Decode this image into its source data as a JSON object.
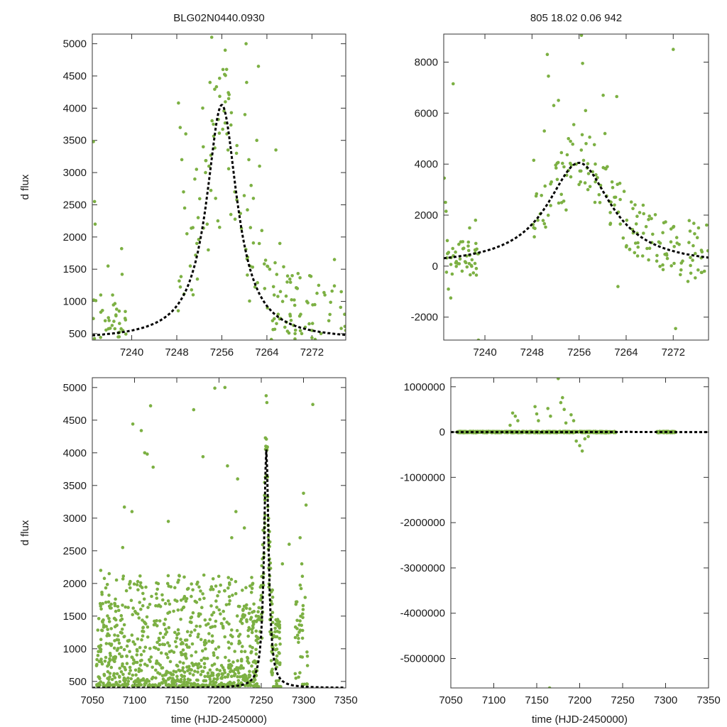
{
  "chart_data": [
    {
      "type": "scatter",
      "title": "BLG02N0440.0930",
      "xlabel": "",
      "ylabel": "d flux",
      "xlim": [
        7233,
        7278
      ],
      "ylim": [
        400,
        5150
      ],
      "xticks": [
        7240,
        7248,
        7256,
        7264,
        7272
      ],
      "yticks": [
        500,
        1000,
        1500,
        2000,
        2500,
        3000,
        3500,
        4000,
        4500,
        5000
      ],
      "series": [
        {
          "name": "data",
          "style": "points",
          "points": [
            [
              7233.2,
              3480
            ],
            [
              7233.4,
              2550
            ],
            [
              7233.5,
              2200
            ],
            [
              7234.5,
              1100
            ],
            [
              7234.8,
              860
            ],
            [
              7235.3,
              700
            ],
            [
              7235.8,
              1550
            ],
            [
              7236.6,
              1100
            ],
            [
              7237.2,
              790
            ],
            [
              7237.6,
              450
            ],
            [
              7238.2,
              1820
            ],
            [
              7238.3,
              1420
            ],
            [
              7248.3,
              4080
            ],
            [
              7248.6,
              3700
            ],
            [
              7248.9,
              3200
            ],
            [
              7249.2,
              2700
            ],
            [
              7249.4,
              2450
            ],
            [
              7249.6,
              3600
            ],
            [
              7249.8,
              2050
            ],
            [
              7250.4,
              1550
            ],
            [
              7251.2,
              2900
            ],
            [
              7251.5,
              3050
            ],
            [
              7251.8,
              2300
            ],
            [
              7252.6,
              4000
            ],
            [
              7252.7,
              3400
            ],
            [
              7253.1,
              3000
            ],
            [
              7253.4,
              2200
            ],
            [
              7253.6,
              1800
            ],
            [
              7253.9,
              4400
            ],
            [
              7254.2,
              5100
            ],
            [
              7254.5,
              3750
            ],
            [
              7254.9,
              2600
            ],
            [
              7255.3,
              2250
            ],
            [
              7255.6,
              2150
            ],
            [
              7256.2,
              4600
            ],
            [
              7256.6,
              4900
            ],
            [
              7256.9,
              3600
            ],
            [
              7257.1,
              3350
            ],
            [
              7257.6,
              2350
            ],
            [
              7258.3,
              2700
            ],
            [
              7258.6,
              3300
            ],
            [
              7260.1,
              3900
            ],
            [
              7260.3,
              5000
            ],
            [
              7260.4,
              4400
            ],
            [
              7260.8,
              3200
            ],
            [
              7261.2,
              2800
            ],
            [
              7261.6,
              2600
            ],
            [
              7262.2,
              3500
            ],
            [
              7262.5,
              4650
            ],
            [
              7262.7,
              3100
            ],
            [
              7263.1,
              2100
            ],
            [
              7263.6,
              1200
            ],
            [
              7264.1,
              900
            ],
            [
              7264.5,
              1500
            ],
            [
              7265.0,
              700
            ],
            [
              7265.3,
              1100
            ],
            [
              7265.6,
              3350
            ],
            [
              7266.0,
              800
            ],
            [
              7266.3,
              1900
            ],
            [
              7266.8,
              1000
            ],
            [
              7267.2,
              600
            ],
            [
              7267.6,
              1300
            ],
            [
              7268.1,
              800
            ],
            [
              7268.5,
              1400
            ],
            [
              7269.0,
              500
            ],
            [
              7269.4,
              1200
            ],
            [
              7270.0,
              800
            ],
            [
              7270.8,
              600
            ],
            [
              7271.6,
              1400
            ],
            [
              7272.0,
              550
            ],
            [
              7272.5,
              950
            ],
            [
              7273.2,
              1250
            ],
            [
              7273.6,
              500
            ],
            [
              7274.3,
              1100
            ],
            [
              7275.0,
              700
            ],
            [
              7276.0,
              1650
            ],
            [
              7277.2,
              1150
            ],
            [
              7277.8,
              800
            ],
            [
              7278.0,
              550
            ]
          ]
        },
        {
          "name": "model",
          "style": "dashed",
          "peak_time": 7256,
          "peak_flux": 4050,
          "baseline": 400,
          "width": 3.3
        }
      ]
    },
    {
      "type": "scatter",
      "title": "805  18.02  0.06  942",
      "xlabel": "",
      "ylabel": "",
      "xlim": [
        7233,
        7278
      ],
      "ylim": [
        -2900,
        9100
      ],
      "xticks": [
        7240,
        7248,
        7256,
        7264,
        7272
      ],
      "yticks": [
        -2000,
        0,
        2000,
        4000,
        6000,
        8000
      ],
      "series": [
        {
          "name": "data",
          "style": "points",
          "points": [
            [
              7233.1,
              3450
            ],
            [
              7233.3,
              2500
            ],
            [
              7233.4,
              2150
            ],
            [
              7233.6,
              1000
            ],
            [
              7233.8,
              -900
            ],
            [
              7234.2,
              -1250
            ],
            [
              7234.6,
              7150
            ],
            [
              7235.0,
              550
            ],
            [
              7235.4,
              100
            ],
            [
              7235.9,
              950
            ],
            [
              7236.4,
              700
            ],
            [
              7236.9,
              400
            ],
            [
              7237.4,
              1500
            ],
            [
              7237.8,
              250
            ],
            [
              7238.4,
              1800
            ],
            [
              7238.9,
              -2900
            ],
            [
              7248.3,
              4150
            ],
            [
              7248.7,
              2750
            ],
            [
              7249.0,
              1800
            ],
            [
              7249.4,
              2050
            ],
            [
              7250.1,
              5300
            ],
            [
              7250.6,
              8300
            ],
            [
              7250.8,
              7450
            ],
            [
              7251.3,
              3300
            ],
            [
              7251.7,
              6300
            ],
            [
              7252.1,
              3850
            ],
            [
              7252.5,
              6500
            ],
            [
              7253.0,
              4450
            ],
            [
              7253.4,
              2550
            ],
            [
              7253.8,
              2200
            ],
            [
              7254.2,
              5000
            ],
            [
              7254.6,
              3500
            ],
            [
              7255.1,
              5550
            ],
            [
              7255.5,
              4000
            ],
            [
              7256.0,
              3200
            ],
            [
              7256.4,
              9050
            ],
            [
              7256.6,
              7950
            ],
            [
              7257.1,
              6100
            ],
            [
              7257.5,
              3000
            ],
            [
              7258.3,
              3700
            ],
            [
              7258.7,
              2500
            ],
            [
              7260.1,
              6700
            ],
            [
              7260.4,
              5200
            ],
            [
              7260.8,
              3900
            ],
            [
              7261.3,
              2100
            ],
            [
              7261.6,
              3300
            ],
            [
              7262.0,
              2700
            ],
            [
              7262.4,
              6650
            ],
            [
              7262.6,
              -800
            ],
            [
              7263.0,
              1650
            ],
            [
              7263.5,
              1100
            ],
            [
              7264.1,
              1800
            ],
            [
              7264.6,
              650
            ],
            [
              7265.2,
              1300
            ],
            [
              7265.6,
              900
            ],
            [
              7266.3,
              2100
            ],
            [
              7266.8,
              400
            ],
            [
              7267.4,
              1550
            ],
            [
              7268.0,
              700
            ],
            [
              7268.5,
              1250
            ],
            [
              7269.2,
              200
            ],
            [
              7269.8,
              900
            ],
            [
              7270.4,
              1700
            ],
            [
              7271.0,
              300
            ],
            [
              7271.6,
              950
            ],
            [
              7272.0,
              8500
            ],
            [
              7272.4,
              -2450
            ],
            [
              7273.0,
              850
            ],
            [
              7273.6,
              200
            ],
            [
              7274.5,
              -600
            ],
            [
              7275.4,
              800
            ],
            [
              7276.3,
              1500
            ],
            [
              7277.3,
              -200
            ],
            [
              7277.9,
              600
            ]
          ]
        },
        {
          "name": "model",
          "style": "dashed",
          "peak_time": 7256,
          "peak_flux": 4050,
          "baseline": 0,
          "width": 6.6
        }
      ]
    },
    {
      "type": "scatter",
      "title": "",
      "xlabel": "time (HJD-2450000)",
      "ylabel": "d flux",
      "xlim": [
        7050,
        7350
      ],
      "ylim": [
        400,
        5150
      ],
      "xticks": [
        7050,
        7100,
        7150,
        7200,
        7250,
        7300,
        7350
      ],
      "yticks": [
        500,
        1000,
        1500,
        2000,
        2500,
        3000,
        3500,
        4000,
        4500,
        5000
      ],
      "series": [
        {
          "name": "data",
          "style": "points",
          "generated": "dense_background",
          "range": [
            7055,
            7245
          ],
          "points": [
            [
              7060,
              2200
            ],
            [
              7070,
              2150
            ],
            [
              7086,
              2550
            ],
            [
              7088,
              3170
            ],
            [
              7097,
              3100
            ],
            [
              7098,
              4440
            ],
            [
              7108,
              4340
            ],
            [
              7112,
              4000
            ],
            [
              7119,
              4720
            ],
            [
              7122,
              3780
            ],
            [
              7115,
              3980
            ],
            [
              7140,
              2950
            ],
            [
              7170,
              4660
            ],
            [
              7181,
              3940
            ],
            [
              7195,
              4990
            ],
            [
              7207,
              5000
            ],
            [
              7210,
              3800
            ],
            [
              7215,
              2700
            ],
            [
              7220,
              3100
            ],
            [
              7222,
              3600
            ],
            [
              7230,
              2850
            ],
            [
              7240,
              2000
            ],
            [
              7275,
              2300
            ],
            [
              7283,
              2600
            ],
            [
              7300,
              3380
            ],
            [
              7303,
              3200
            ],
            [
              7311,
              4740
            ],
            [
              7296,
              2700
            ],
            [
              7298,
              2300
            ]
          ]
        },
        {
          "name": "model",
          "style": "dashed",
          "peak_time": 7256,
          "peak_flux": 4050,
          "baseline": 400,
          "width": 3.3
        }
      ]
    },
    {
      "type": "scatter",
      "title": "",
      "xlabel": "time (HJD-2450000)",
      "ylabel": "",
      "xlim": [
        7050,
        7350
      ],
      "ylim": [
        -5650000,
        1200000
      ],
      "xticks": [
        7050,
        7100,
        7150,
        7200,
        7250,
        7300,
        7350
      ],
      "yticks": [
        -5000000,
        -4000000,
        -3000000,
        -2000000,
        -1000000,
        0,
        1000000
      ],
      "series": [
        {
          "name": "data",
          "style": "points",
          "points": [
            [
              7122,
              420000
            ],
            [
              7125,
              350000
            ],
            [
              7128,
              250000
            ],
            [
              7119,
              150000
            ],
            [
              7148,
              560000
            ],
            [
              7150,
              400000
            ],
            [
              7152,
              250000
            ],
            [
              7163,
              520000
            ],
            [
              7166,
              350000
            ],
            [
              7175,
              1180000
            ],
            [
              7178,
              650000
            ],
            [
              7180,
              760000
            ],
            [
              7182,
              500000
            ],
            [
              7184,
              200000
            ],
            [
              7190,
              380000
            ],
            [
              7193,
              250000
            ],
            [
              7196,
              -200000
            ],
            [
              7200,
              -300000
            ],
            [
              7203,
              -420000
            ],
            [
              7206,
              -150000
            ],
            [
              7210,
              -100000
            ],
            [
              7165,
              -5650000
            ]
          ]
        },
        {
          "name": "model",
          "style": "dashed",
          "peak_time": 7256,
          "peak_flux": 4050,
          "baseline": 0,
          "width": 6.6
        }
      ]
    }
  ]
}
